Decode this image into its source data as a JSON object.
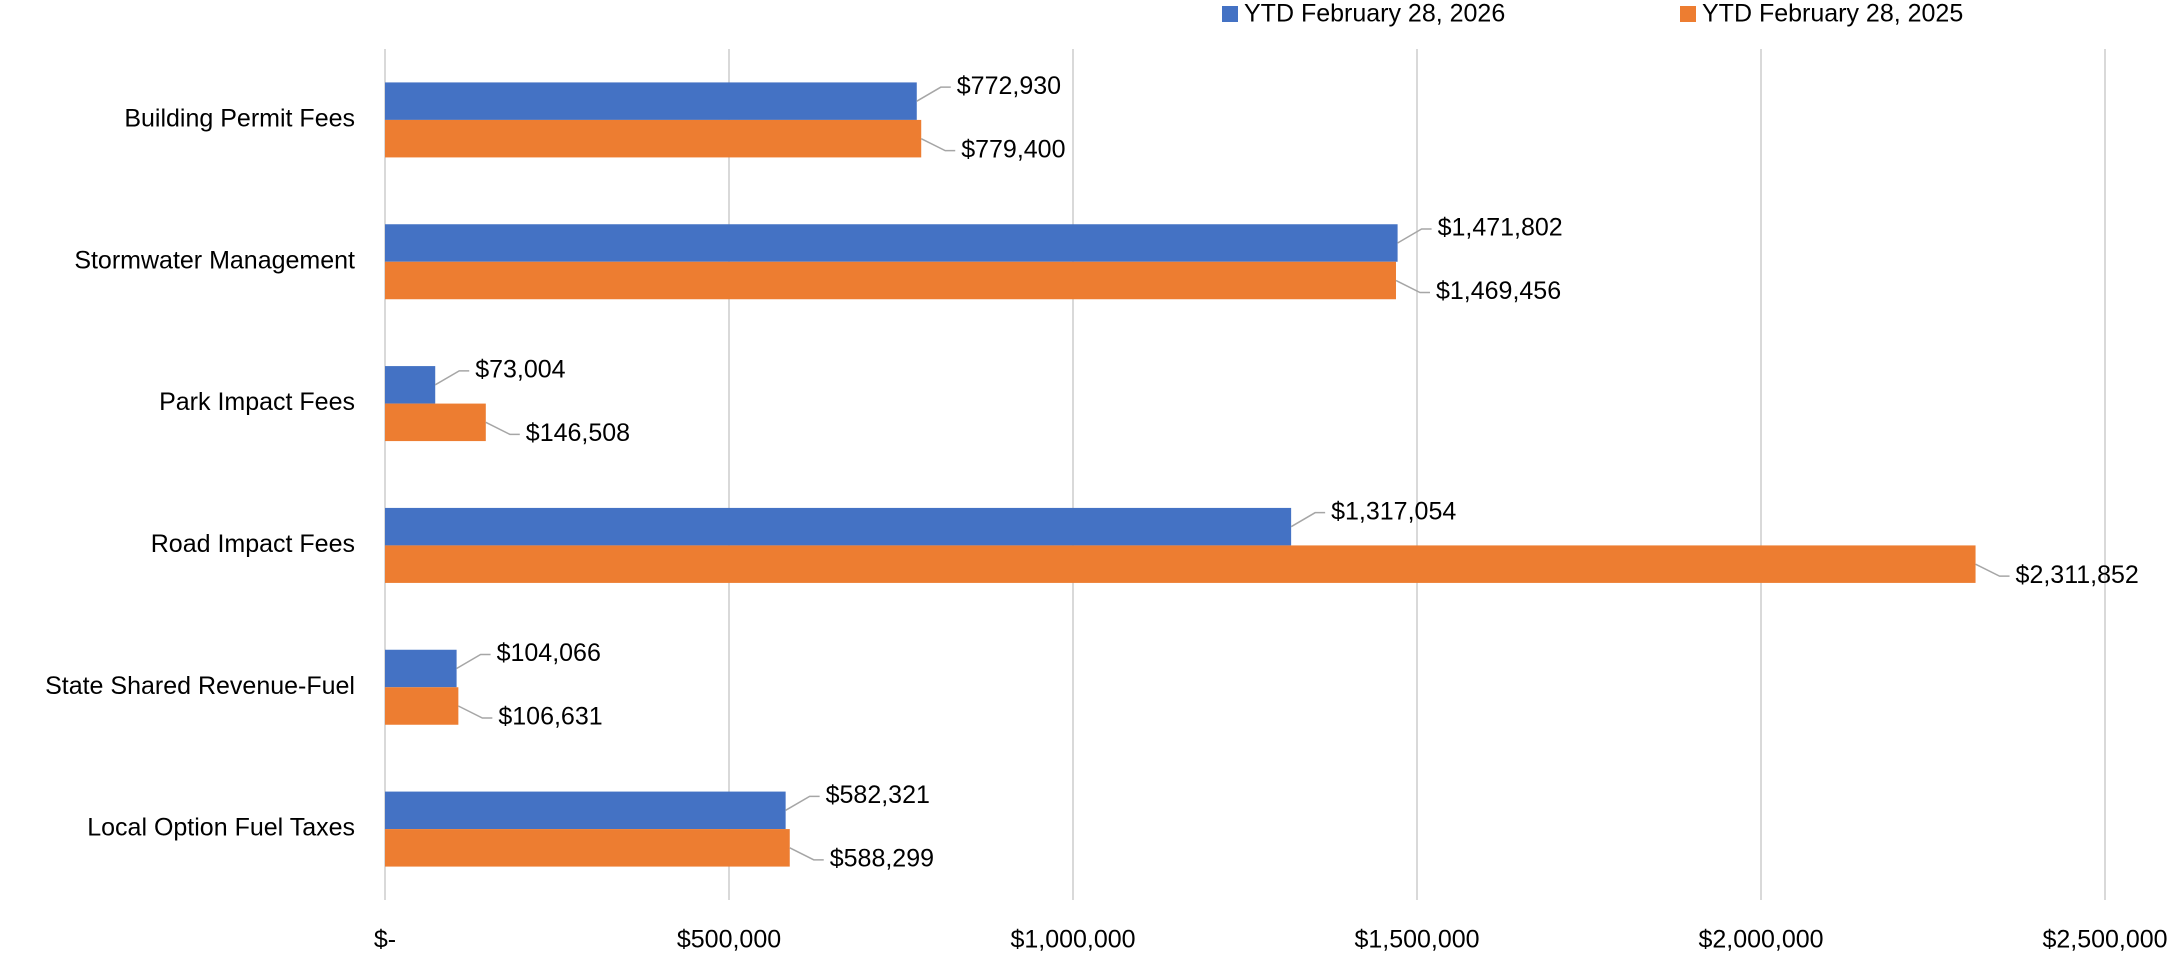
{
  "chart_data": {
    "type": "hbar",
    "categories": [
      "Building Permit Fees",
      "Stormwater Management",
      "Park Impact Fees",
      "Road Impact Fees",
      "State Shared Revenue-Fuel",
      "Local Option Fuel Taxes"
    ],
    "series": [
      {
        "name": "YTD February 28, 2026",
        "color": "#4472c4",
        "values": [
          772930,
          1471802,
          73004,
          1317054,
          104066,
          582321
        ],
        "value_labels": [
          "$772,930",
          "$1,471,802",
          "$73,004",
          "$1,317,054",
          "$104,066",
          "$582,321"
        ]
      },
      {
        "name": "YTD February 28, 2025",
        "color": "#ed7d31",
        "values": [
          779400,
          1469456,
          146508,
          2311852,
          106631,
          588299
        ],
        "value_labels": [
          "$779,400",
          "$1,469,456",
          "$146,508",
          "$2,311,852",
          "$106,631",
          "$588,299"
        ]
      }
    ],
    "xlim": [
      0,
      2500000
    ],
    "xticks": [
      {
        "value": 0,
        "label": "$-"
      },
      {
        "value": 500000,
        "label": "$500,000"
      },
      {
        "value": 1000000,
        "label": "$1,000,000"
      },
      {
        "value": 1500000,
        "label": "$1,500,000"
      },
      {
        "value": 2000000,
        "label": "$2,000,000"
      },
      {
        "value": 2500000,
        "label": "$2,500,000"
      }
    ],
    "grid": true,
    "legend": "top"
  }
}
